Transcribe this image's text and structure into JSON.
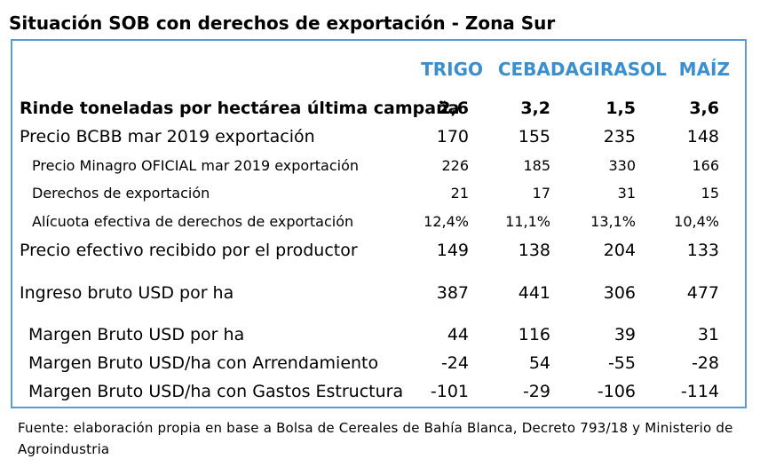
{
  "title": "Situación SOB con derechos de exportación - Zona Sur",
  "columns": [
    "TRIGO",
    "CEBADA",
    "GIRASOL",
    "MAÍZ"
  ],
  "rows": [
    {
      "label": "Rinde toneladas por hectárea última campaña",
      "values": [
        "2,6",
        "3,2",
        "1,5",
        "3,6"
      ]
    },
    {
      "label": "Precio BCBB mar 2019 exportación",
      "values": [
        "170",
        "155",
        "235",
        "148"
      ]
    },
    {
      "label": "Precio Minagro OFICIAL mar 2019 exportación",
      "values": [
        "226",
        "185",
        "330",
        "166"
      ]
    },
    {
      "label": "Derechos de exportación",
      "values": [
        "21",
        "17",
        "31",
        "15"
      ]
    },
    {
      "label": "Alícuota efectiva de derechos de exportación",
      "values": [
        "12,4%",
        "11,1%",
        "13,1%",
        "10,4%"
      ]
    },
    {
      "label": "Precio efectivo recibido por el productor",
      "values": [
        "149",
        "138",
        "204",
        "133"
      ]
    },
    {
      "label": "Ingreso bruto USD por ha",
      "values": [
        "387",
        "441",
        "306",
        "477"
      ]
    },
    {
      "label": "Margen Bruto USD por ha",
      "values": [
        "44",
        "116",
        "39",
        "31"
      ]
    },
    {
      "label": "Margen Bruto USD/ha con Arrendamiento",
      "values": [
        "-24",
        "54",
        "-55",
        "-28"
      ]
    },
    {
      "label": "Margen Bruto USD/ha con Gastos Estructura",
      "values": [
        "-101",
        "-29",
        "-106",
        "-114"
      ]
    }
  ],
  "footer": "Fuente: elaboración propia en base a Bolsa de Cereales de Bahía Blanca, Decreto 793/18 y Ministerio de Agroindustria"
}
